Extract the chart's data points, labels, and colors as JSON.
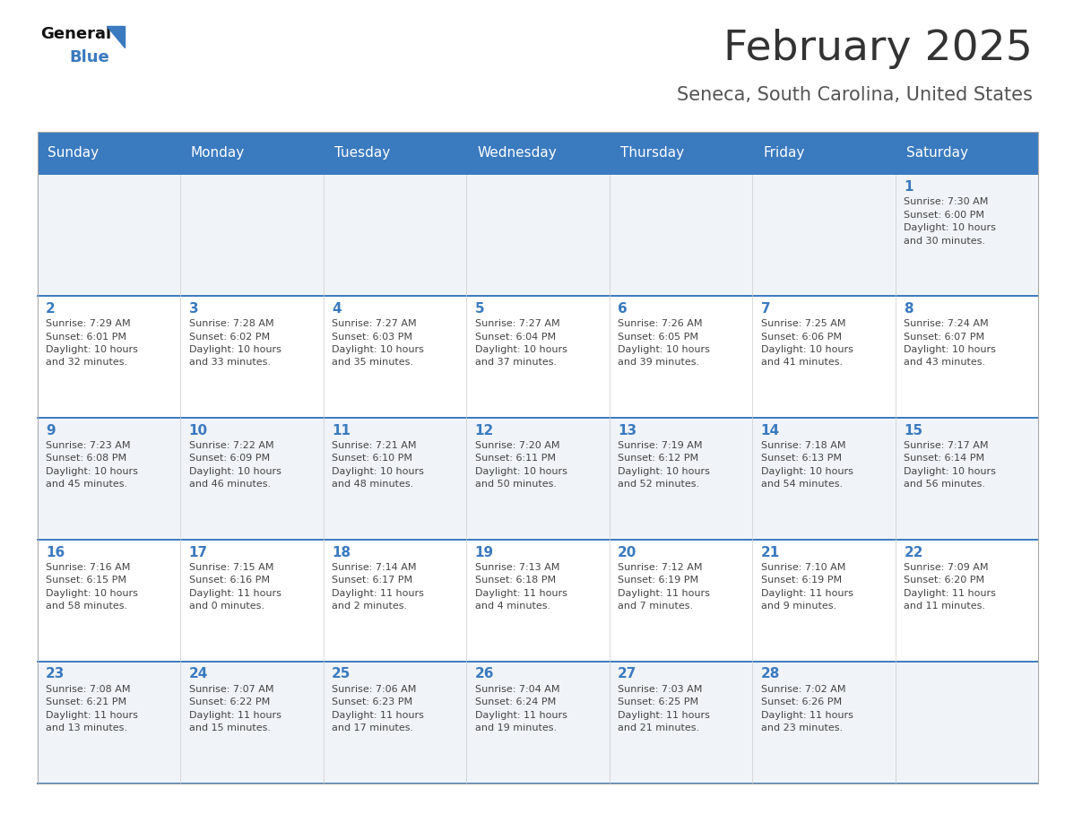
{
  "title": "February 2025",
  "subtitle": "Seneca, South Carolina, United States",
  "header_color": "#3a7abf",
  "header_text_color": "#ffffff",
  "day_names": [
    "Sunday",
    "Monday",
    "Tuesday",
    "Wednesday",
    "Thursday",
    "Friday",
    "Saturday"
  ],
  "title_color": "#333333",
  "subtitle_color": "#555555",
  "number_color": "#3a7abf",
  "text_color": "#444444",
  "line_color": "#3a7abf",
  "bg_color_odd": "#f0f4f8",
  "bg_color_even": "#ffffff",
  "white": "#ffffff",
  "calendar": [
    [
      {
        "day": 0,
        "info": ""
      },
      {
        "day": 0,
        "info": ""
      },
      {
        "day": 0,
        "info": ""
      },
      {
        "day": 0,
        "info": ""
      },
      {
        "day": 0,
        "info": ""
      },
      {
        "day": 0,
        "info": ""
      },
      {
        "day": 1,
        "info": "Sunrise: 7:30 AM\nSunset: 6:00 PM\nDaylight: 10 hours\nand 30 minutes."
      }
    ],
    [
      {
        "day": 2,
        "info": "Sunrise: 7:29 AM\nSunset: 6:01 PM\nDaylight: 10 hours\nand 32 minutes."
      },
      {
        "day": 3,
        "info": "Sunrise: 7:28 AM\nSunset: 6:02 PM\nDaylight: 10 hours\nand 33 minutes."
      },
      {
        "day": 4,
        "info": "Sunrise: 7:27 AM\nSunset: 6:03 PM\nDaylight: 10 hours\nand 35 minutes."
      },
      {
        "day": 5,
        "info": "Sunrise: 7:27 AM\nSunset: 6:04 PM\nDaylight: 10 hours\nand 37 minutes."
      },
      {
        "day": 6,
        "info": "Sunrise: 7:26 AM\nSunset: 6:05 PM\nDaylight: 10 hours\nand 39 minutes."
      },
      {
        "day": 7,
        "info": "Sunrise: 7:25 AM\nSunset: 6:06 PM\nDaylight: 10 hours\nand 41 minutes."
      },
      {
        "day": 8,
        "info": "Sunrise: 7:24 AM\nSunset: 6:07 PM\nDaylight: 10 hours\nand 43 minutes."
      }
    ],
    [
      {
        "day": 9,
        "info": "Sunrise: 7:23 AM\nSunset: 6:08 PM\nDaylight: 10 hours\nand 45 minutes."
      },
      {
        "day": 10,
        "info": "Sunrise: 7:22 AM\nSunset: 6:09 PM\nDaylight: 10 hours\nand 46 minutes."
      },
      {
        "day": 11,
        "info": "Sunrise: 7:21 AM\nSunset: 6:10 PM\nDaylight: 10 hours\nand 48 minutes."
      },
      {
        "day": 12,
        "info": "Sunrise: 7:20 AM\nSunset: 6:11 PM\nDaylight: 10 hours\nand 50 minutes."
      },
      {
        "day": 13,
        "info": "Sunrise: 7:19 AM\nSunset: 6:12 PM\nDaylight: 10 hours\nand 52 minutes."
      },
      {
        "day": 14,
        "info": "Sunrise: 7:18 AM\nSunset: 6:13 PM\nDaylight: 10 hours\nand 54 minutes."
      },
      {
        "day": 15,
        "info": "Sunrise: 7:17 AM\nSunset: 6:14 PM\nDaylight: 10 hours\nand 56 minutes."
      }
    ],
    [
      {
        "day": 16,
        "info": "Sunrise: 7:16 AM\nSunset: 6:15 PM\nDaylight: 10 hours\nand 58 minutes."
      },
      {
        "day": 17,
        "info": "Sunrise: 7:15 AM\nSunset: 6:16 PM\nDaylight: 11 hours\nand 0 minutes."
      },
      {
        "day": 18,
        "info": "Sunrise: 7:14 AM\nSunset: 6:17 PM\nDaylight: 11 hours\nand 2 minutes."
      },
      {
        "day": 19,
        "info": "Sunrise: 7:13 AM\nSunset: 6:18 PM\nDaylight: 11 hours\nand 4 minutes."
      },
      {
        "day": 20,
        "info": "Sunrise: 7:12 AM\nSunset: 6:19 PM\nDaylight: 11 hours\nand 7 minutes."
      },
      {
        "day": 21,
        "info": "Sunrise: 7:10 AM\nSunset: 6:19 PM\nDaylight: 11 hours\nand 9 minutes."
      },
      {
        "day": 22,
        "info": "Sunrise: 7:09 AM\nSunset: 6:20 PM\nDaylight: 11 hours\nand 11 minutes."
      }
    ],
    [
      {
        "day": 23,
        "info": "Sunrise: 7:08 AM\nSunset: 6:21 PM\nDaylight: 11 hours\nand 13 minutes."
      },
      {
        "day": 24,
        "info": "Sunrise: 7:07 AM\nSunset: 6:22 PM\nDaylight: 11 hours\nand 15 minutes."
      },
      {
        "day": 25,
        "info": "Sunrise: 7:06 AM\nSunset: 6:23 PM\nDaylight: 11 hours\nand 17 minutes."
      },
      {
        "day": 26,
        "info": "Sunrise: 7:04 AM\nSunset: 6:24 PM\nDaylight: 11 hours\nand 19 minutes."
      },
      {
        "day": 27,
        "info": "Sunrise: 7:03 AM\nSunset: 6:25 PM\nDaylight: 11 hours\nand 21 minutes."
      },
      {
        "day": 28,
        "info": "Sunrise: 7:02 AM\nSunset: 6:26 PM\nDaylight: 11 hours\nand 23 minutes."
      },
      {
        "day": 0,
        "info": ""
      }
    ]
  ]
}
